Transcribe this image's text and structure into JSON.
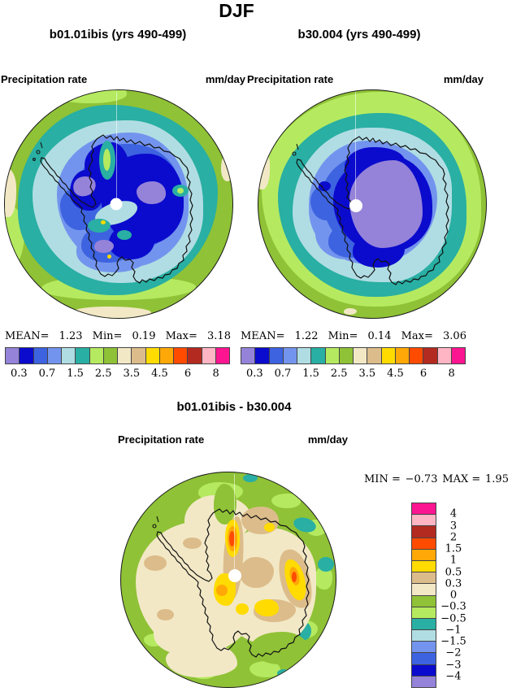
{
  "title": "DJF",
  "panel_left": {
    "subtitle": "b01.01ibis (yrs 490-499)",
    "field": "Precipitation rate",
    "units": "mm/day",
    "mean_label": "MEAN=",
    "mean": "1.23",
    "min_label": "Min=",
    "min": "0.19",
    "max_label": "Max=",
    "max": "3.18"
  },
  "panel_right": {
    "subtitle": "b30.004 (yrs 490-499)",
    "field": "Precipitation rate",
    "units": "mm/day",
    "mean_label": "MEAN=",
    "mean": "1.22",
    "min_label": "Min=",
    "min": "0.14",
    "max_label": "Max=",
    "max": "3.06"
  },
  "panel_diff": {
    "subtitle": "b01.01ibis - b30.004",
    "field": "Precipitation rate",
    "units": "mm/day",
    "min_label": "MIN =",
    "min": "−0.73",
    "max_label": "MAX =",
    "max": "1.95"
  },
  "colorbar": {
    "colors": [
      "#9583D9",
      "#0B0BCD",
      "#3D63E0",
      "#7394EE",
      "#B0DDE3",
      "#29AFA3",
      "#B5EA60",
      "#8FC236",
      "#F2E8C6",
      "#DCBC8A",
      "#FFDB00",
      "#FFA807",
      "#FF4B00",
      "#B32A20",
      "#FFB5C3",
      "#FB1590"
    ],
    "tick_labels": [
      "0.3",
      "0.7",
      "1.5",
      "2.5",
      "3.5",
      "4.5",
      "6",
      "8"
    ]
  },
  "diff_colorbar": {
    "tick_labels": [
      "4",
      "3",
      "2",
      "1.5",
      "1",
      "0.5",
      "0.3",
      "0",
      "−0.3",
      "−0.5",
      "−1",
      "−1.5",
      "−2",
      "−3",
      "−4"
    ]
  },
  "chart_data": {
    "type": "heatmap",
    "subtype": "filled-contour-map",
    "projection": "south-polar-stereographic",
    "season": "DJF",
    "variable": "Precipitation rate",
    "units": "mm/day",
    "panels": [
      {
        "label": "b01.01ibis (yrs 490-499)",
        "stats": {
          "mean": 1.23,
          "min": 0.19,
          "max": 3.18
        },
        "colorbar_tick_values": [
          0.3,
          0.7,
          1.5,
          2.5,
          3.5,
          4.5,
          6,
          8
        ],
        "legend_position": "horizontal-below"
      },
      {
        "label": "b30.004 (yrs 490-499)",
        "stats": {
          "mean": 1.22,
          "min": 0.14,
          "max": 3.06
        },
        "colorbar_tick_values": [
          0.3,
          0.7,
          1.5,
          2.5,
          3.5,
          4.5,
          6,
          8
        ],
        "legend_position": "horizontal-below"
      },
      {
        "label": "b01.01ibis - b30.004",
        "stats": {
          "min": -0.73,
          "max": 1.95
        },
        "colorbar_tick_values": [
          4,
          3,
          2,
          1.5,
          1,
          0.5,
          0.3,
          0,
          -0.3,
          -0.5,
          -1,
          -1.5,
          -2,
          -3,
          -4
        ],
        "legend_position": "vertical-right"
      }
    ],
    "palette_low_to_high": [
      "#9583D9",
      "#0B0BCD",
      "#3D63E0",
      "#7394EE",
      "#B0DDE3",
      "#29AFA3",
      "#B5EA60",
      "#8FC236",
      "#F2E8C6",
      "#DCBC8A",
      "#FFDB00",
      "#FFA807",
      "#FF4B00",
      "#B32A20",
      "#FFB5C3",
      "#FB1590"
    ]
  }
}
